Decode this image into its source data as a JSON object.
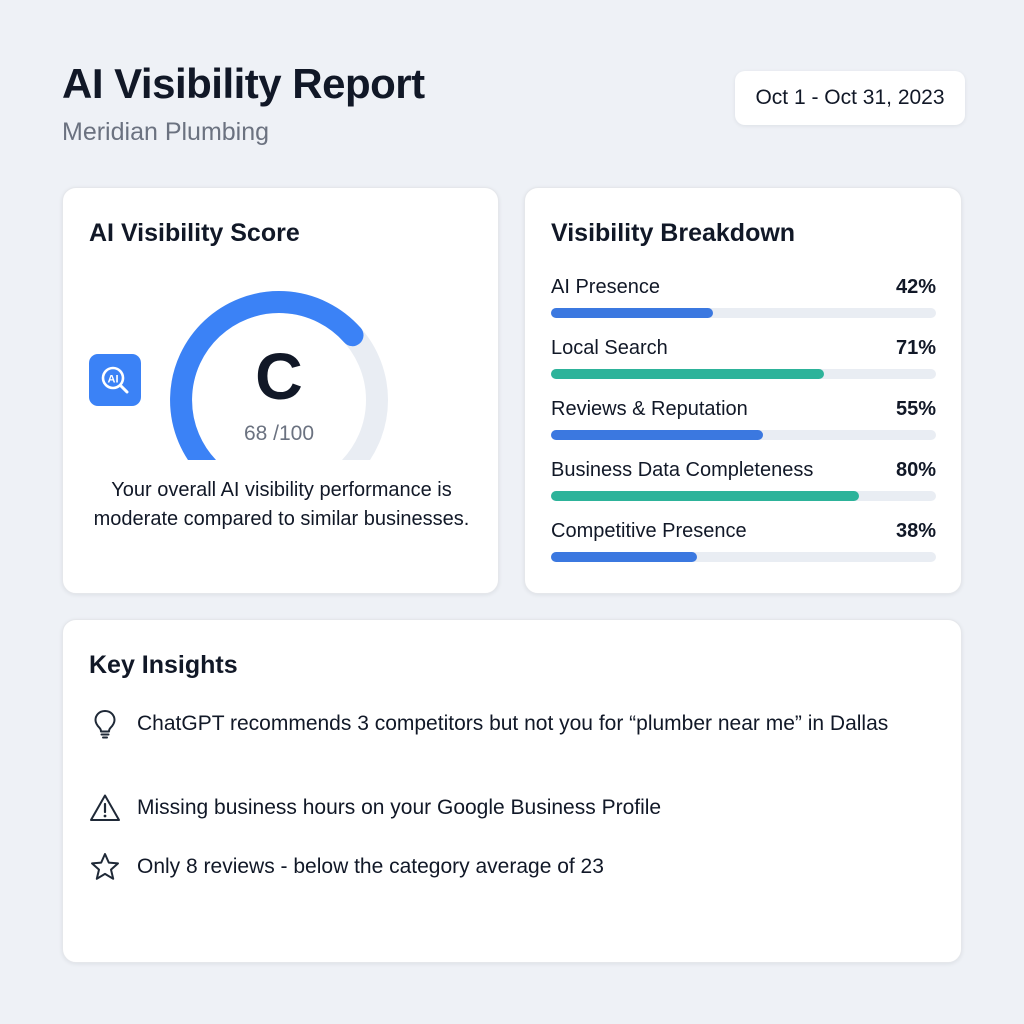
{
  "header": {
    "title": "AI Visibility Report",
    "subtitle": "Meridian Plumbing",
    "date_range": "Oct 1 - Oct 31, 2023"
  },
  "score_card": {
    "title": "AI Visibility Score",
    "badge_icon": "ai-search-icon",
    "grade": "C",
    "score_text": "68 /100",
    "score_value": 68,
    "score_max": 100,
    "description": "Your overall AI visibility performance is moderate compared to similar businesses.",
    "gauge_color": "#3b82f6",
    "gauge_track_color": "#e9edf3"
  },
  "breakdown": {
    "title": "Visibility Breakdown",
    "items": [
      {
        "label": "AI Presence",
        "value_text": "42%",
        "value": 42,
        "color": "#3b78e0"
      },
      {
        "label": "Local Search",
        "value_text": "71%",
        "value": 71,
        "color": "#2db39a"
      },
      {
        "label": "Reviews & Reputation",
        "value_text": "55%",
        "value": 55,
        "color": "#3b78e0"
      },
      {
        "label": "Business Data Completeness",
        "value_text": "80%",
        "value": 80,
        "color": "#2db39a"
      },
      {
        "label": "Competitive Presence",
        "value_text": "38%",
        "value": 38,
        "color": "#3b78e0"
      }
    ]
  },
  "insights": {
    "title": "Key Insights",
    "items": [
      {
        "icon": "lightbulb-icon",
        "text": "ChatGPT recommends 3 competitors but not you for “plumber near me” in Dallas"
      },
      {
        "icon": "warning-icon",
        "text": "Missing business hours on your Google Business Profile"
      },
      {
        "icon": "star-icon",
        "text": "Only 8 reviews - below the category average of 23"
      }
    ]
  }
}
